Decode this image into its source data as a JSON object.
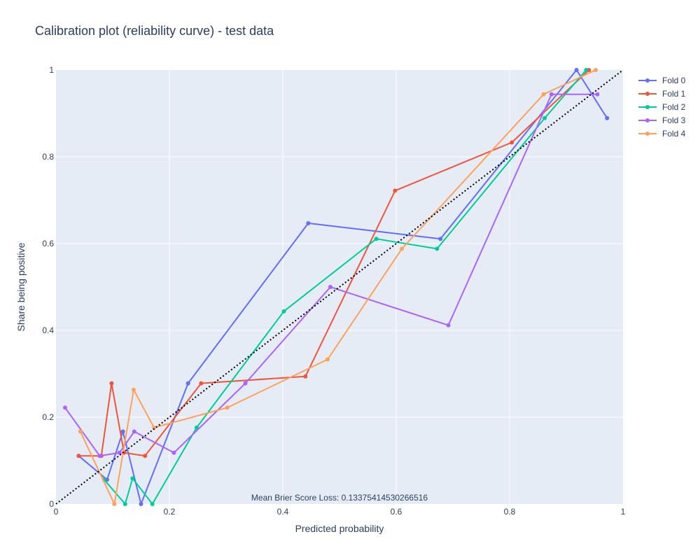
{
  "chart_data": {
    "type": "line",
    "title": "Calibration plot (reliability curve) - test data",
    "xlabel": "Predicted probability",
    "ylabel": "Share being positive",
    "xlim": [
      0,
      1
    ],
    "ylim": [
      0,
      1
    ],
    "x_ticks": [
      "0",
      "0.2",
      "0.4",
      "0.6",
      "0.8",
      "1"
    ],
    "y_ticks": [
      "0",
      "0.2",
      "0.4",
      "0.6",
      "0.8",
      "1"
    ],
    "grid": true,
    "legend_position": "top-right",
    "annotation": "Mean Brier Score Loss: 0.13375414530266516",
    "series": [
      {
        "name": "Fold 0",
        "color": "#636efa",
        "x": [
          0.04,
          0.09,
          0.118,
          0.15,
          0.233,
          0.445,
          0.678,
          0.918,
          0.972
        ],
        "y": [
          0.111,
          0.056,
          0.167,
          0.0,
          0.278,
          0.647,
          0.611,
          1.0,
          0.889
        ]
      },
      {
        "name": "Fold 1",
        "color": "#EF553B",
        "x": [
          0.04,
          0.08,
          0.098,
          0.12,
          0.157,
          0.256,
          0.44,
          0.598,
          0.804,
          0.94
        ],
        "y": [
          0.111,
          0.111,
          0.278,
          0.118,
          0.111,
          0.278,
          0.294,
          0.722,
          0.833,
          1.0
        ]
      },
      {
        "name": "Fold 2",
        "color": "#00cc96",
        "x": [
          0.085,
          0.122,
          0.135,
          0.17,
          0.248,
          0.402,
          0.565,
          0.672,
          0.862,
          0.935
        ],
        "y": [
          0.056,
          0.0,
          0.059,
          0.0,
          0.176,
          0.444,
          0.611,
          0.588,
          0.889,
          1.0
        ]
      },
      {
        "name": "Fold 3",
        "color": "#ab63fa",
        "x": [
          0.016,
          0.077,
          0.112,
          0.138,
          0.208,
          0.334,
          0.484,
          0.692,
          0.874,
          0.955
        ],
        "y": [
          0.222,
          0.111,
          0.118,
          0.167,
          0.118,
          0.278,
          0.5,
          0.412,
          0.944,
          0.944
        ]
      },
      {
        "name": "Fold 4",
        "color": "#FFA15A",
        "x": [
          0.043,
          0.103,
          0.137,
          0.173,
          0.302,
          0.479,
          0.61,
          0.86,
          0.952
        ],
        "y": [
          0.167,
          0.0,
          0.263,
          0.176,
          0.222,
          0.333,
          0.588,
          0.944,
          1.0
        ]
      }
    ]
  }
}
